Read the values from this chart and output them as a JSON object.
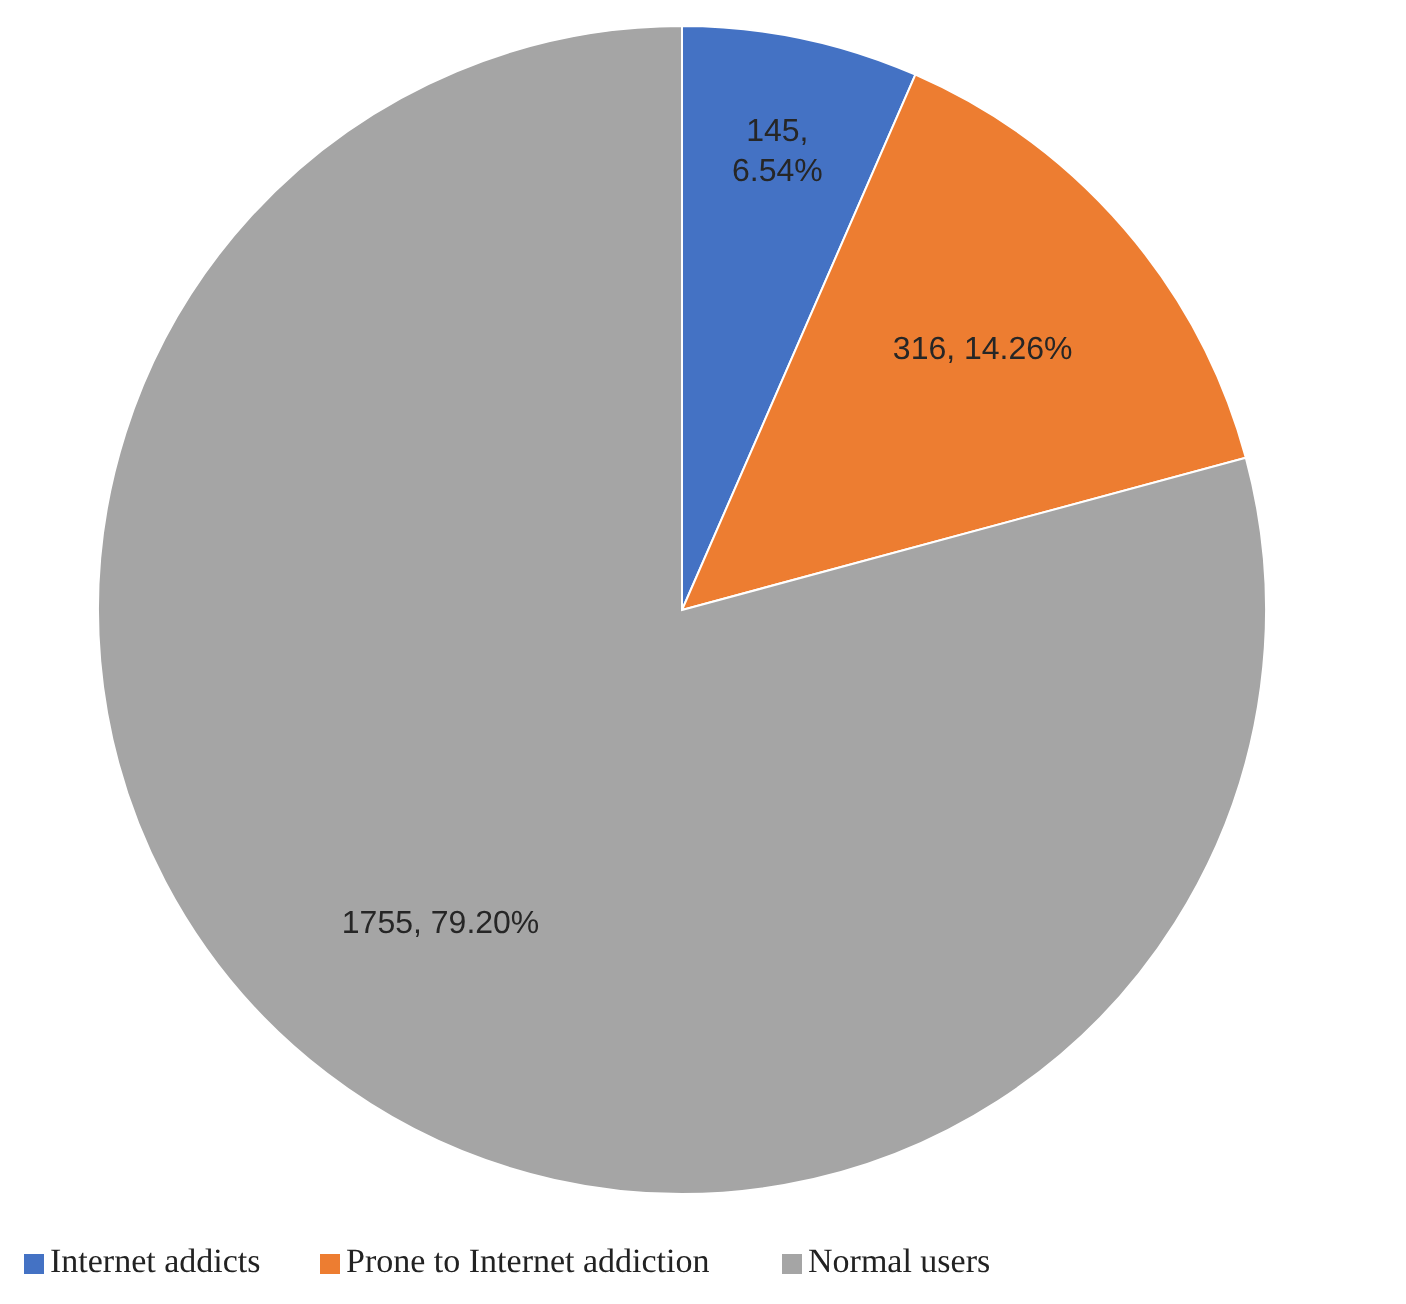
{
  "chart_data": {
    "type": "pie",
    "categories": [
      "Internet addicts",
      "Prone to Internet addiction",
      "Normal users"
    ],
    "values": [
      145,
      316,
      1755
    ],
    "colors": [
      "#4472c4",
      "#ed7d31",
      "#a5a5a5"
    ],
    "value_labels": [
      "145, 6.54%",
      "316, 14.26%",
      "1755, 79.20%"
    ],
    "legend": "bottom"
  }
}
